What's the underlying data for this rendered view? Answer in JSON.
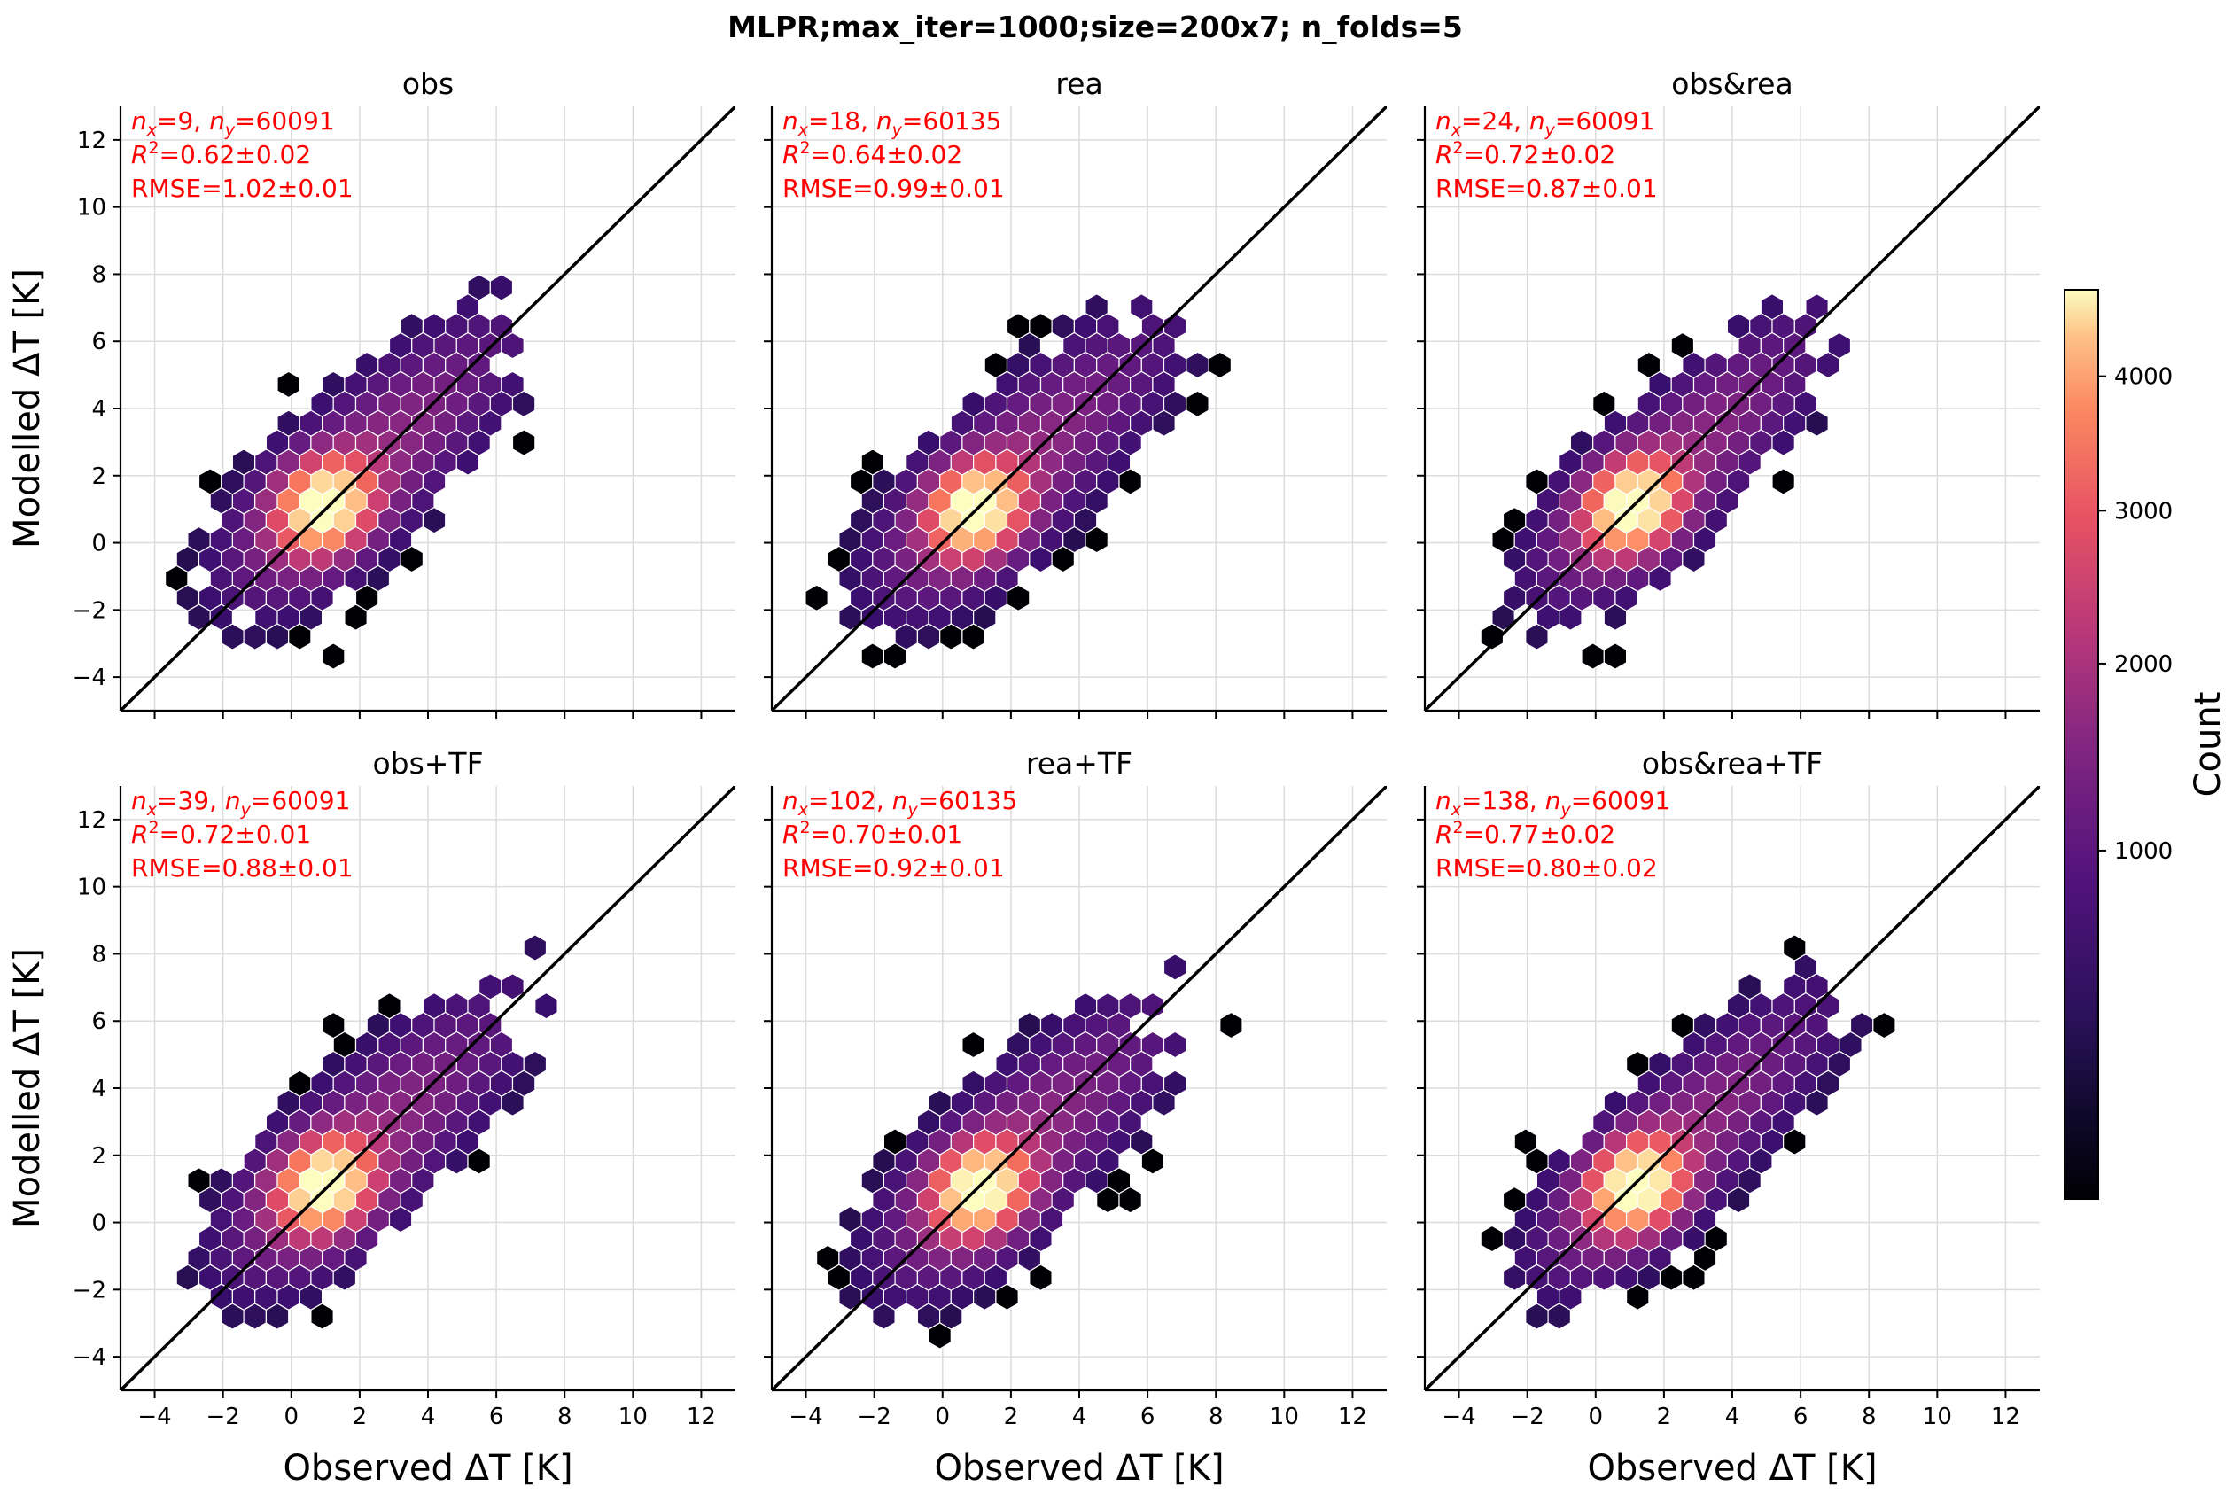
{
  "figure": {
    "title": "MLPR;max_iter=1000;size=200x7; n_folds=5",
    "colorbar": {
      "label": "Count",
      "ticks": [
        "1000",
        "2000",
        "3000",
        "4000"
      ],
      "tick_values": [
        1000,
        2000,
        3000,
        4000
      ],
      "vmin": 1,
      "vmax": 4700,
      "scale": "power",
      "colormap": "magma"
    }
  },
  "chart_data": [
    {
      "type": "hexbin",
      "title": "obs",
      "xlabel": "Observed ΔT [K]",
      "ylabel": "Modelled ΔT [K]",
      "xlim": [
        -5,
        13
      ],
      "ylim": [
        -5,
        13
      ],
      "xticks": [
        "−4",
        "−2",
        "0",
        "2",
        "4",
        "6",
        "8",
        "10",
        "12"
      ],
      "yticks": [
        "−4",
        "−2",
        "0",
        "2",
        "4",
        "6",
        "8",
        "10",
        "12"
      ],
      "stats": {
        "nx": "9",
        "ny": "60091",
        "r2": "0.62±0.02",
        "rmse": "1.02±0.01"
      },
      "annotation": {
        "nx_text": "=9, ",
        "ny_text": "=60091",
        "r2_text": "=0.62±0.02",
        "rmse_text": "RMSE=1.02±0.01"
      },
      "peak": [
        1.0,
        1.1
      ],
      "identity_line": true
    },
    {
      "type": "hexbin",
      "title": "rea",
      "xlabel": "Observed ΔT [K]",
      "ylabel": "Modelled ΔT [K]",
      "xlim": [
        -5,
        13
      ],
      "ylim": [
        -5,
        13
      ],
      "xticks": [
        "−4",
        "−2",
        "0",
        "2",
        "4",
        "6",
        "8",
        "10",
        "12"
      ],
      "yticks": [
        "−4",
        "−2",
        "0",
        "2",
        "4",
        "6",
        "8",
        "10",
        "12"
      ],
      "stats": {
        "nx": "18",
        "ny": "60135",
        "r2": "0.64±0.02",
        "rmse": "0.99±0.01"
      },
      "annotation": {
        "nx_text": "=18, ",
        "ny_text": "=60135",
        "r2_text": "=0.64±0.02",
        "rmse_text": "RMSE=0.99±0.01"
      },
      "peak": [
        1.0,
        1.0
      ],
      "identity_line": true
    },
    {
      "type": "hexbin",
      "title": "obs&rea",
      "xlabel": "Observed ΔT [K]",
      "ylabel": "Modelled ΔT [K]",
      "xlim": [
        -5,
        13
      ],
      "ylim": [
        -5,
        13
      ],
      "xticks": [
        "−4",
        "−2",
        "0",
        "2",
        "4",
        "6",
        "8",
        "10",
        "12"
      ],
      "yticks": [
        "−4",
        "−2",
        "0",
        "2",
        "4",
        "6",
        "8",
        "10",
        "12"
      ],
      "stats": {
        "nx": "24",
        "ny": "60091",
        "r2": "0.72±0.02",
        "rmse": "0.87±0.01"
      },
      "annotation": {
        "nx_text": "=24, ",
        "ny_text": "=60091",
        "r2_text": "=0.72±0.02",
        "rmse_text": "RMSE=0.87±0.01"
      },
      "peak": [
        1.1,
        1.1
      ],
      "identity_line": true
    },
    {
      "type": "hexbin",
      "title": "obs+TF",
      "xlabel": "Observed ΔT [K]",
      "ylabel": "Modelled ΔT [K]",
      "xlim": [
        -5,
        13
      ],
      "ylim": [
        -5,
        13
      ],
      "xticks": [
        "−4",
        "−2",
        "0",
        "2",
        "4",
        "6",
        "8",
        "10",
        "12"
      ],
      "yticks": [
        "−4",
        "−2",
        "0",
        "2",
        "4",
        "6",
        "8",
        "10",
        "12"
      ],
      "stats": {
        "nx": "39",
        "ny": "60091",
        "r2": "0.72±0.01",
        "rmse": "0.88±0.01"
      },
      "annotation": {
        "nx_text": "=39, ",
        "ny_text": "=60091",
        "r2_text": "=0.72±0.01",
        "rmse_text": "RMSE=0.88±0.01"
      },
      "peak": [
        1.0,
        1.1
      ],
      "identity_line": true
    },
    {
      "type": "hexbin",
      "title": "rea+TF",
      "xlabel": "Observed ΔT [K]",
      "ylabel": "Modelled ΔT [K]",
      "xlim": [
        -5,
        13
      ],
      "ylim": [
        -5,
        13
      ],
      "xticks": [
        "−4",
        "−2",
        "0",
        "2",
        "4",
        "6",
        "8",
        "10",
        "12"
      ],
      "yticks": [
        "−4",
        "−2",
        "0",
        "2",
        "4",
        "6",
        "8",
        "10",
        "12"
      ],
      "stats": {
        "nx": "102",
        "ny": "60135",
        "r2": "0.70±0.01",
        "rmse": "0.92±0.01"
      },
      "annotation": {
        "nx_text": "=102, ",
        "ny_text": "=60135",
        "r2_text": "=0.70±0.01",
        "rmse_text": "RMSE=0.92±0.01"
      },
      "peak": [
        1.1,
        1.0
      ],
      "identity_line": true
    },
    {
      "type": "hexbin",
      "title": "obs&rea+TF",
      "xlabel": "Observed ΔT [K]",
      "ylabel": "Modelled ΔT [K]",
      "xlim": [
        -5,
        13
      ],
      "ylim": [
        -5,
        13
      ],
      "xticks": [
        "−4",
        "−2",
        "0",
        "2",
        "4",
        "6",
        "8",
        "10",
        "12"
      ],
      "yticks": [
        "−4",
        "−2",
        "0",
        "2",
        "4",
        "6",
        "8",
        "10",
        "12"
      ],
      "stats": {
        "nx": "138",
        "ny": "60091",
        "r2": "0.77±0.02",
        "rmse": "0.80±0.02"
      },
      "annotation": {
        "nx_text": "=138, ",
        "ny_text": "=60091",
        "r2_text": "=0.77±0.02",
        "rmse_text": "RMSE=0.80±0.02"
      },
      "peak": [
        1.2,
        1.1
      ],
      "identity_line": true
    }
  ]
}
